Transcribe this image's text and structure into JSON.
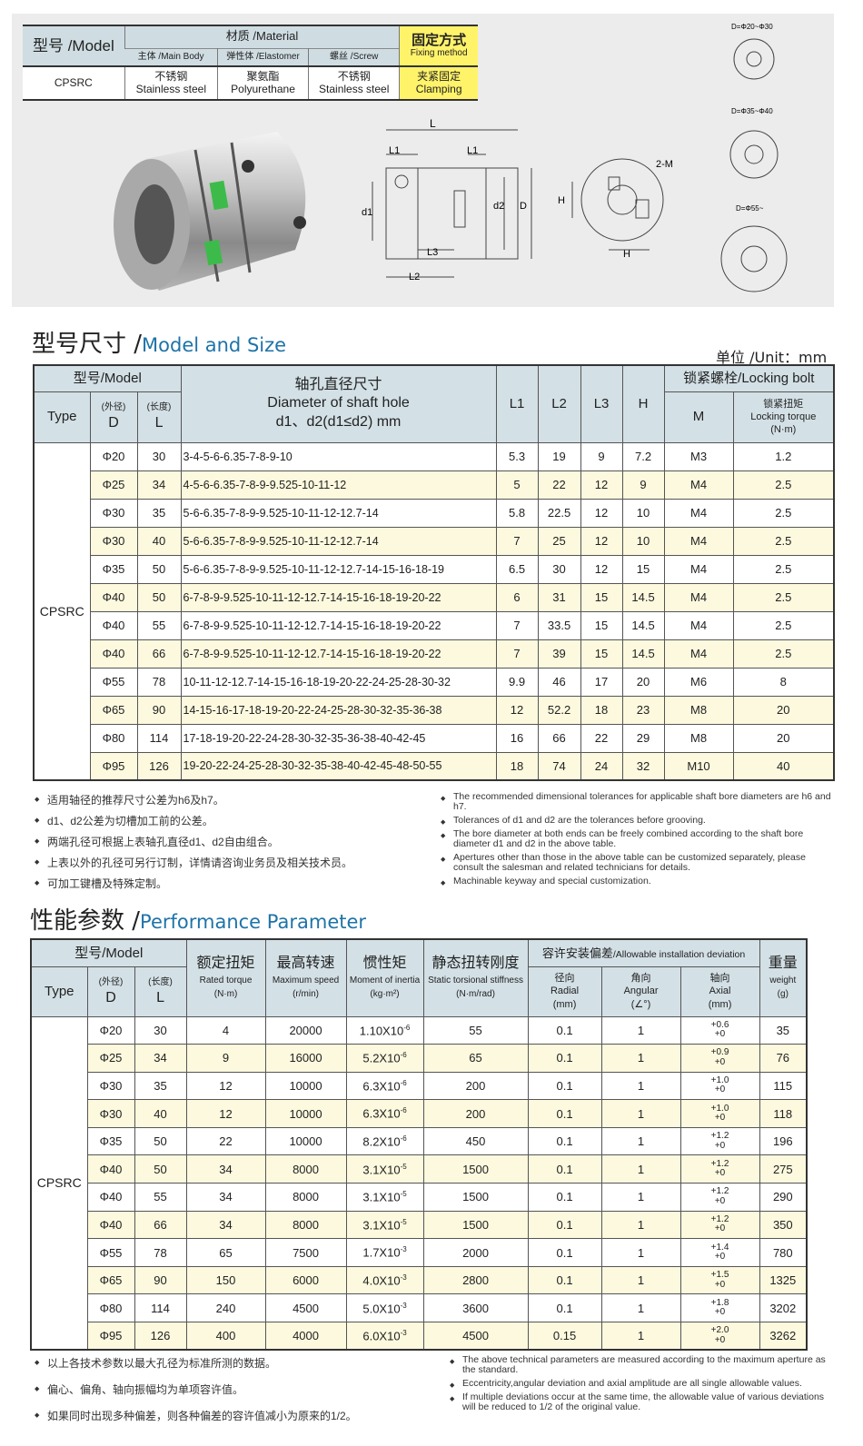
{
  "material_table": {
    "model_label": "型号 /Model",
    "material_label": "材质 /Material",
    "main_body": "主体 /Main Body",
    "elastomer": "弹性体 /Elastomer",
    "screw": "螺丝 /Screw",
    "fixing_cn": "固定方式",
    "fixing_en": "Fixing method",
    "model": "CPSRC",
    "main_body_cn": "不锈钢",
    "main_body_en": "Stainless steel",
    "elastomer_cn": "聚氨酯",
    "elastomer_en": "Polyurethane",
    "screw_cn": "不锈钢",
    "screw_en": "Stainless steel",
    "clamp_cn": "夹紧固定",
    "clamp_en": "Clamping"
  },
  "drawing_labels": {
    "L": "L",
    "L1": "L1",
    "L1b": "L1",
    "d1": "d1",
    "d2": "d2",
    "D": "D",
    "L3": "L3",
    "L2": "L2",
    "H": "H",
    "H2": "H",
    "M": "2-M",
    "spider1": "D=Φ20~Φ30",
    "spider2": "D=Φ35~Φ40",
    "spider3": "D=Φ55~"
  },
  "size_section": {
    "title_cn": "型号尺寸 /",
    "title_en": "Model and Size",
    "unit": "单位 /Unit：mm"
  },
  "size_table": {
    "h_model": "型号/Model",
    "h_type": "Type",
    "h_d_cn": "(外径)",
    "h_d": "D",
    "h_l_cn": "(长度)",
    "h_l": "L",
    "h_dia_cn": "轴孔直径尺寸",
    "h_dia_en": "Diameter of shaft hole",
    "h_dia_sub": "d1、d2(d1≤d2) mm",
    "h_l1": "L1",
    "h_l2": "L2",
    "h_l3": "L3",
    "h_h": "H",
    "h_bolt": "锁紧螺栓/Locking bolt",
    "h_m": "M",
    "h_torque_cn": "锁紧扭矩",
    "h_torque_en": "Locking torque",
    "h_torque_unit": "(N·m)",
    "type": "CPSRC",
    "rows": [
      [
        "Φ20",
        "30",
        "3-4-5-6-6.35-7-8-9-10",
        "5.3",
        "19",
        "9",
        "7.2",
        "M3",
        "1.2"
      ],
      [
        "Φ25",
        "34",
        "4-5-6-6.35-7-8-9-9.525-10-11-12",
        "5",
        "22",
        "12",
        "9",
        "M4",
        "2.5"
      ],
      [
        "Φ30",
        "35",
        "5-6-6.35-7-8-9-9.525-10-11-12-12.7-14",
        "5.8",
        "22.5",
        "12",
        "10",
        "M4",
        "2.5"
      ],
      [
        "Φ30",
        "40",
        "5-6-6.35-7-8-9-9.525-10-11-12-12.7-14",
        "7",
        "25",
        "12",
        "10",
        "M4",
        "2.5"
      ],
      [
        "Φ35",
        "50",
        "5-6-6.35-7-8-9-9.525-10-11-12-12.7-14-15-16-18-19",
        "6.5",
        "30",
        "12",
        "15",
        "M4",
        "2.5"
      ],
      [
        "Φ40",
        "50",
        "6-7-8-9-9.525-10-11-12-12.7-14-15-16-18-19-20-22",
        "6",
        "31",
        "15",
        "14.5",
        "M4",
        "2.5"
      ],
      [
        "Φ40",
        "55",
        "6-7-8-9-9.525-10-11-12-12.7-14-15-16-18-19-20-22",
        "7",
        "33.5",
        "15",
        "14.5",
        "M4",
        "2.5"
      ],
      [
        "Φ40",
        "66",
        "6-7-8-9-9.525-10-11-12-12.7-14-15-16-18-19-20-22",
        "7",
        "39",
        "15",
        "14.5",
        "M4",
        "2.5"
      ],
      [
        "Φ55",
        "78",
        "10-11-12-12.7-14-15-16-18-19-20-22-24-25-28-30-32",
        "9.9",
        "46",
        "17",
        "20",
        "M6",
        "8"
      ],
      [
        "Φ65",
        "90",
        "14-15-16-17-18-19-20-22-24-25-28-30-32-35-36-38",
        "12",
        "52.2",
        "18",
        "23",
        "M8",
        "20"
      ],
      [
        "Φ80",
        "114",
        "17-18-19-20-22-24-28-30-32-35-36-38-40-42-45",
        "16",
        "66",
        "22",
        "29",
        "M8",
        "20"
      ],
      [
        "Φ95",
        "126",
        "19-20-22-24-25-28-30-32-35-38-40-42-45-48-50-55",
        "18",
        "74",
        "24",
        "32",
        "M10",
        "40"
      ]
    ]
  },
  "size_notes_cn": [
    "适用轴径的推荐尺寸公差为h6及h7。",
    "d1、d2公差为切槽加工前的公差。",
    "两端孔径可根据上表轴孔直径d1、d2自由组合。",
    "上表以外的孔径可另行订制，详情请咨询业务员及相关技术员。",
    "可加工键槽及特殊定制。"
  ],
  "size_notes_en": [
    "The recommended dimensional tolerances for applicable shaft bore diameters are h6 and h7.",
    "Tolerances of d1 and d2 are the tolerances before grooving.",
    "The bore diameter at both ends can be freely combined according to the shaft bore diameter d1 and d2 in the above table.",
    "Apertures other than those in the above table can be customized separately, please consult the salesman and related technicians for details.",
    "Machinable keyway and special customization."
  ],
  "perf_section": {
    "title_cn": "性能参数 /",
    "title_en": "Performance Parameter"
  },
  "perf_table": {
    "h_model": "型号/Model",
    "h_type": "Type",
    "h_d_cn": "(外径)",
    "h_d": "D",
    "h_l_cn": "(长度)",
    "h_l": "L",
    "h_torque_cn": "额定扭矩",
    "h_torque_en": "Rated torque",
    "h_torque_unit": "(N·m)",
    "h_speed_cn": "最高转速",
    "h_speed_en": "Maximum speed",
    "h_speed_unit": "(r/min)",
    "h_inertia_cn": "惯性矩",
    "h_inertia_en": "Moment of inertia",
    "h_inertia_unit": "(kg·m²)",
    "h_stiff_cn": "静态扭转刚度",
    "h_stiff_en": "Static torsional stiffness",
    "h_stiff_unit": "(N·m/rad)",
    "h_dev_cn": "容许安装偏差",
    "h_dev_en": "/Allowable installation deviation",
    "h_radial_cn": "径向",
    "h_radial_en": "Radial",
    "h_radial_unit": "(mm)",
    "h_ang_cn": "角向",
    "h_ang_en": "Angular",
    "h_ang_unit": "(∠°)",
    "h_axial_cn": "轴向",
    "h_axial_en": "Axial",
    "h_axial_unit": "(mm)",
    "h_weight_cn": "重量",
    "h_weight_en": "weight",
    "h_weight_unit": "(g)",
    "type": "CPSRC",
    "rows": [
      {
        "d": "Φ20",
        "l": "30",
        "torque": "4",
        "speed": "20000",
        "inertia": "1.10X10",
        "exp": "-6",
        "stiff": "55",
        "radial": "0.1",
        "ang": "1",
        "ax_top": "+0.6",
        "ax_bot": "+0",
        "weight": "35"
      },
      {
        "d": "Φ25",
        "l": "34",
        "torque": "9",
        "speed": "16000",
        "inertia": "5.2X10",
        "exp": "-6",
        "stiff": "65",
        "radial": "0.1",
        "ang": "1",
        "ax_top": "+0.9",
        "ax_bot": "+0",
        "weight": "76"
      },
      {
        "d": "Φ30",
        "l": "35",
        "torque": "12",
        "speed": "10000",
        "inertia": "6.3X10",
        "exp": "-6",
        "stiff": "200",
        "radial": "0.1",
        "ang": "1",
        "ax_top": "+1.0",
        "ax_bot": "+0",
        "weight": "115"
      },
      {
        "d": "Φ30",
        "l": "40",
        "torque": "12",
        "speed": "10000",
        "inertia": "6.3X10",
        "exp": "-6",
        "stiff": "200",
        "radial": "0.1",
        "ang": "1",
        "ax_top": "+1.0",
        "ax_bot": "+0",
        "weight": "118"
      },
      {
        "d": "Φ35",
        "l": "50",
        "torque": "22",
        "speed": "10000",
        "inertia": "8.2X10",
        "exp": "-6",
        "stiff": "450",
        "radial": "0.1",
        "ang": "1",
        "ax_top": "+1.2",
        "ax_bot": "+0",
        "weight": "196"
      },
      {
        "d": "Φ40",
        "l": "50",
        "torque": "34",
        "speed": "8000",
        "inertia": "3.1X10",
        "exp": "-5",
        "stiff": "1500",
        "radial": "0.1",
        "ang": "1",
        "ax_top": "+1.2",
        "ax_bot": "+0",
        "weight": "275"
      },
      {
        "d": "Φ40",
        "l": "55",
        "torque": "34",
        "speed": "8000",
        "inertia": "3.1X10",
        "exp": "-5",
        "stiff": "1500",
        "radial": "0.1",
        "ang": "1",
        "ax_top": "+1.2",
        "ax_bot": "+0",
        "weight": "290"
      },
      {
        "d": "Φ40",
        "l": "66",
        "torque": "34",
        "speed": "8000",
        "inertia": "3.1X10",
        "exp": "-5",
        "stiff": "1500",
        "radial": "0.1",
        "ang": "1",
        "ax_top": "+1.2",
        "ax_bot": "+0",
        "weight": "350"
      },
      {
        "d": "Φ55",
        "l": "78",
        "torque": "65",
        "speed": "7500",
        "inertia": "1.7X10",
        "exp": "-3",
        "stiff": "2000",
        "radial": "0.1",
        "ang": "1",
        "ax_top": "+1.4",
        "ax_bot": "+0",
        "weight": "780"
      },
      {
        "d": "Φ65",
        "l": "90",
        "torque": "150",
        "speed": "6000",
        "inertia": "4.0X10",
        "exp": "-3",
        "stiff": "2800",
        "radial": "0.1",
        "ang": "1",
        "ax_top": "+1.5",
        "ax_bot": "+0",
        "weight": "1325"
      },
      {
        "d": "Φ80",
        "l": "114",
        "torque": "240",
        "speed": "4500",
        "inertia": "5.0X10",
        "exp": "-3",
        "stiff": "3600",
        "radial": "0.1",
        "ang": "1",
        "ax_top": "+1.8",
        "ax_bot": "+0",
        "weight": "3202"
      },
      {
        "d": "Φ95",
        "l": "126",
        "torque": "400",
        "speed": "4000",
        "inertia": "6.0X10",
        "exp": "-3",
        "stiff": "4500",
        "radial": "0.15",
        "ang": "1",
        "ax_top": "+2.0",
        "ax_bot": "+0",
        "weight": "3262"
      }
    ]
  },
  "perf_notes_cn": [
    "以上各技术参数以最大孔径为标准所测的数据。",
    "偏心、偏角、轴向振幅均为单项容许值。",
    "如果同时出现多种偏差，则各种偏差的容许值减小为原来的1/2。"
  ],
  "perf_notes_en": [
    "The above technical parameters are measured according to the maximum aperture as the standard.",
    "Eccentricity,angular deviation and axial amplitude are all single allowable values.",
    "If multiple deviations occur at the same time, the allowable value of various deviations will be reduced to 1/2 of the original value."
  ],
  "colors": {
    "header": "#d3e0e6",
    "alt_row": "#fcf9de",
    "highlight": "#fff36a",
    "title_accent": "#1e73a8",
    "spider": "#39b54a"
  }
}
